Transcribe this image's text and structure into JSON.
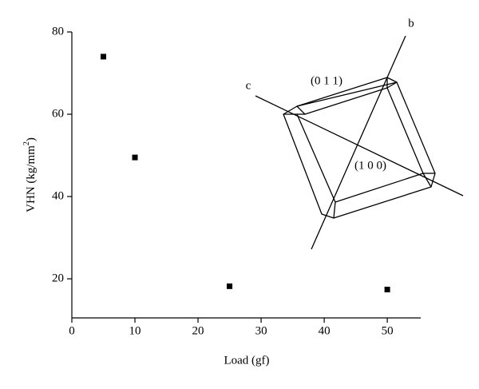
{
  "chart_data": {
    "type": "scatter",
    "xlabel": "Load (gf)",
    "ylabel_parts": [
      "VHN (kg/mm",
      "2",
      ")"
    ],
    "x": [
      5,
      10,
      25,
      50
    ],
    "values": [
      74,
      49.5,
      18.2,
      17.4
    ],
    "color": "#000000",
    "xlim": [
      0,
      55.3
    ],
    "ylim": [
      10.5,
      80
    ],
    "xticks": [
      0,
      10,
      20,
      30,
      40,
      50
    ],
    "yticks": [
      20,
      40,
      60,
      80
    ],
    "annotations": [
      "b",
      "c",
      "(0 1 1)",
      "(1 0 0)"
    ]
  }
}
